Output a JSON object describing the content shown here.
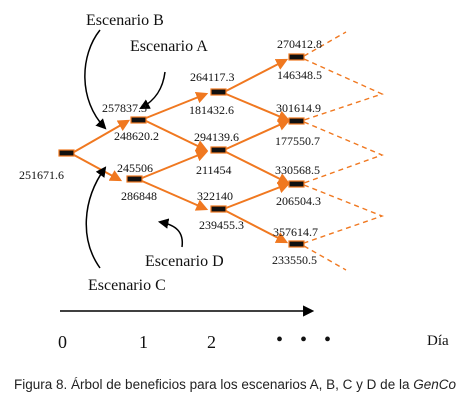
{
  "scenario_labels": {
    "b": "Escenario B",
    "a": "Escenario A",
    "d": "Escenario D",
    "c": "Escenario C"
  },
  "node_values": {
    "root": "251671.6",
    "n1_top_upper": "257837.3",
    "n1_top_lower": "248620.2",
    "n1_bot_upper": "245506",
    "n1_bot_lower": "286848",
    "n2_a_upper": "264117.3",
    "n2_a_lower": "181432.6",
    "n2_b_upper": "294139.6",
    "n2_b_lower": "211454",
    "n2_c_upper": "322140",
    "n2_c_lower": "239455.3",
    "n3_a_upper": "270412.8",
    "n3_a_lower": "146348.5",
    "n3_b_upper": "301614.9",
    "n3_b_lower": "177550.7",
    "n3_c_upper": "330568.5",
    "n3_c_lower": "206504.3",
    "n3_d_upper": "357614.7",
    "n3_d_lower": "233550.5"
  },
  "axis": {
    "ticks": [
      "0",
      "1",
      "2"
    ],
    "ellipsis": "• • •",
    "unit_label": "Día"
  },
  "colors": {
    "branch": "#f07820",
    "node_fill": "#111111",
    "node_border": "#f07820",
    "arrow": "#000000"
  },
  "caption": {
    "main": "Figura 8. Árbol de beneficios para los escenarios A, B, C y D de la ",
    "italic": "GenCo"
  }
}
